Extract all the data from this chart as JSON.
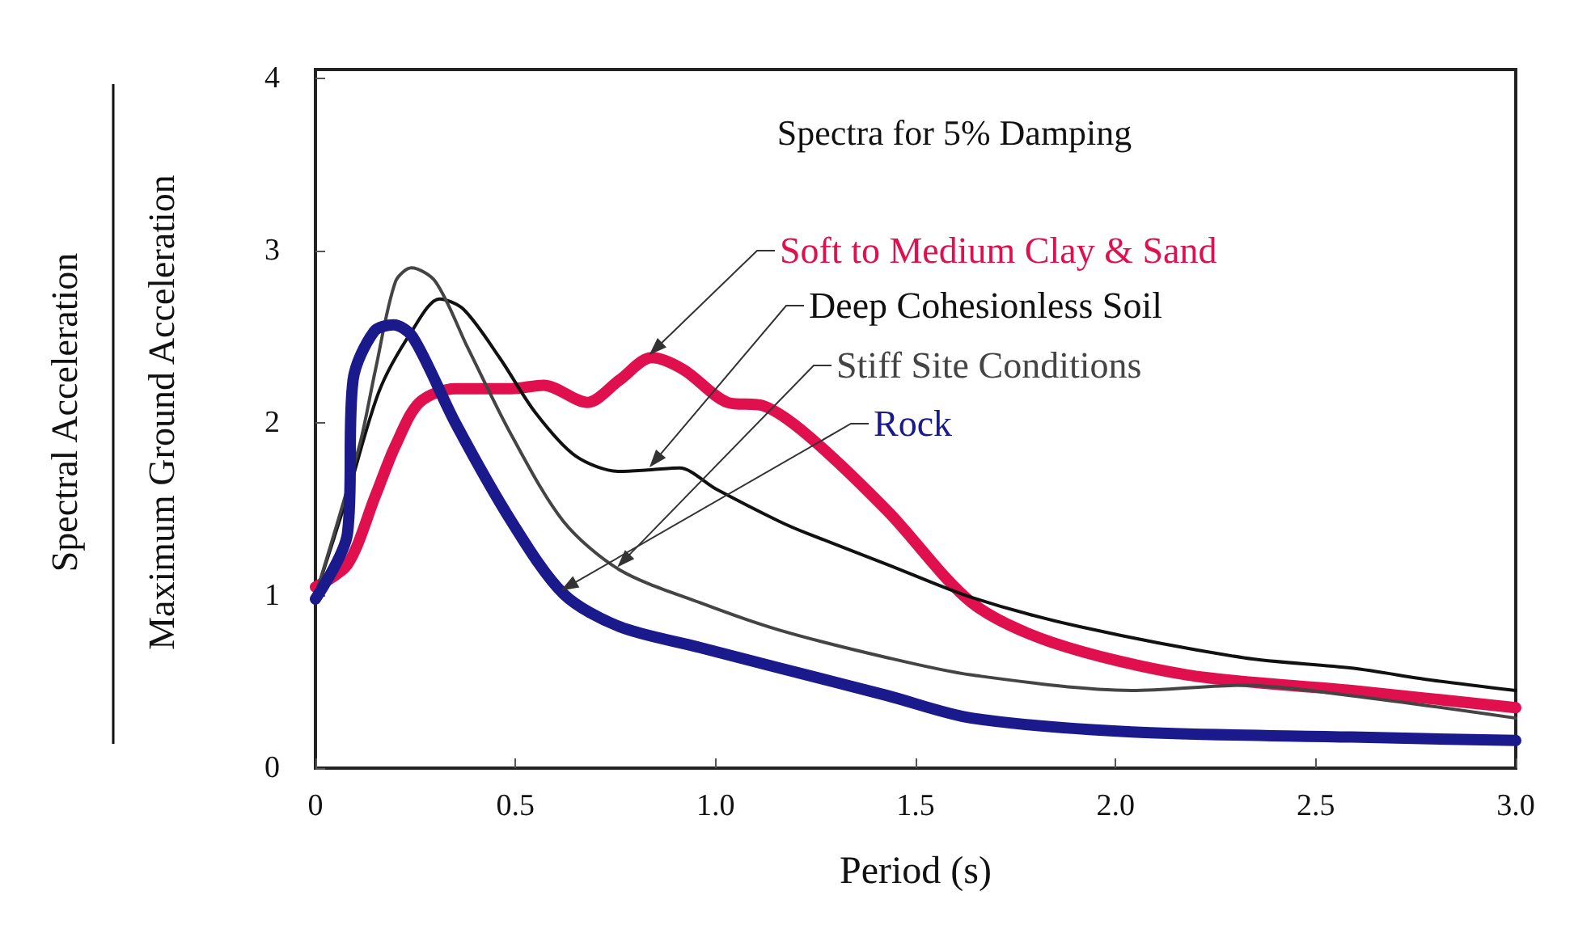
{
  "chart_data": {
    "type": "line",
    "title": "Spectra for 5% Damping",
    "xlabel": "Period (s)",
    "ylabel": "Spectral Acceleration\nMaximum Ground Acceleration",
    "xlim": [
      0,
      3
    ],
    "xticks": [
      0,
      0.5,
      {
        "value": 1,
        "label": "1.0"
      },
      1.5,
      {
        "value": 2,
        "label": "2.0"
      },
      2.5,
      {
        "value": 3,
        "label": "3.0"
      }
    ],
    "ylim": [
      0,
      4.05
    ],
    "yticks": [
      0,
      1,
      2,
      3,
      4
    ],
    "grid": false,
    "legend": false,
    "marker": "none",
    "line_style": "solid",
    "series": [
      {
        "name": "Soft to Medium Clay & Sand",
        "color": "#e0104f",
        "x": [
          0,
          0.08,
          0.15,
          0.2,
          0.26,
          0.35,
          0.49,
          0.57,
          0.68,
          0.76,
          0.84,
          0.92,
          1.03,
          1.12,
          1.23,
          1.43,
          1.64,
          1.84,
          2.18,
          2.59,
          3.0
        ],
        "values": [
          1.05,
          1.18,
          1.58,
          1.87,
          2.12,
          2.2,
          2.2,
          2.22,
          2.12,
          2.25,
          2.38,
          2.31,
          2.12,
          2.1,
          1.93,
          1.49,
          0.96,
          0.73,
          0.54,
          0.45,
          0.35
        ]
      },
      {
        "name": "Deep Cohesionless Soil",
        "color": "#111111",
        "x": [
          0,
          0.08,
          0.16,
          0.24,
          0.31,
          0.37,
          0.46,
          0.55,
          0.65,
          0.76,
          0.84,
          0.91,
          1.0,
          1.16,
          1.23,
          1.43,
          1.64,
          1.91,
          2.32,
          2.59,
          2.79,
          3.0
        ],
        "values": [
          1.0,
          1.58,
          2.19,
          2.53,
          2.72,
          2.66,
          2.38,
          2.06,
          1.81,
          1.72,
          1.73,
          1.74,
          1.62,
          1.43,
          1.36,
          1.18,
          0.99,
          0.82,
          0.64,
          0.58,
          0.51,
          0.45
        ]
      },
      {
        "name": "Stiff Site Conditions",
        "color": "#444444",
        "x": [
          0,
          0.11,
          0.15,
          0.2,
          0.24,
          0.3,
          0.38,
          0.49,
          0.62,
          0.76,
          0.96,
          1.16,
          1.43,
          1.64,
          2.04,
          2.32,
          2.59,
          3.0
        ],
        "values": [
          1.0,
          1.87,
          2.31,
          2.82,
          2.9,
          2.82,
          2.44,
          1.93,
          1.43,
          1.15,
          0.96,
          0.8,
          0.64,
          0.54,
          0.45,
          0.48,
          0.42,
          0.29
        ]
      },
      {
        "name": "Rock",
        "color": "#1a1a8c",
        "x": [
          0,
          0.08,
          0.094,
          0.146,
          0.195,
          0.243,
          0.35,
          0.49,
          0.62,
          0.76,
          0.96,
          1.16,
          1.43,
          1.64,
          2.04,
          2.59,
          3.0
        ],
        "values": [
          0.98,
          1.36,
          2.25,
          2.53,
          2.57,
          2.5,
          2.0,
          1.43,
          1.01,
          0.82,
          0.7,
          0.58,
          0.42,
          0.29,
          0.21,
          0.18,
          0.16
        ]
      }
    ]
  }
}
